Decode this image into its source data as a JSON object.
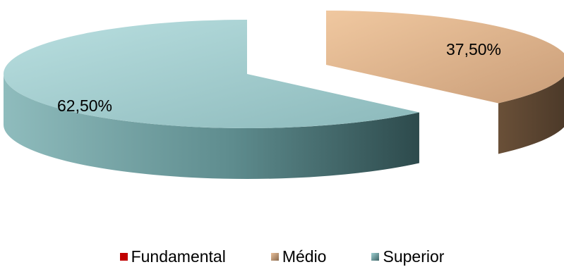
{
  "chart_data": {
    "type": "pie",
    "style": "3d-exploded",
    "legend_position": "bottom",
    "categories": [
      "Fundamental",
      "Médio",
      "Superior"
    ],
    "values": [
      0.0,
      37.5,
      62.5
    ],
    "labels": [
      "",
      "37,50%",
      "62,50%"
    ],
    "colors": [
      "#c00000",
      "#d9a97f",
      "#8fc4c6"
    ],
    "dark_colors": [
      "#7a0000",
      "#5a4330",
      "#35585a"
    ]
  }
}
